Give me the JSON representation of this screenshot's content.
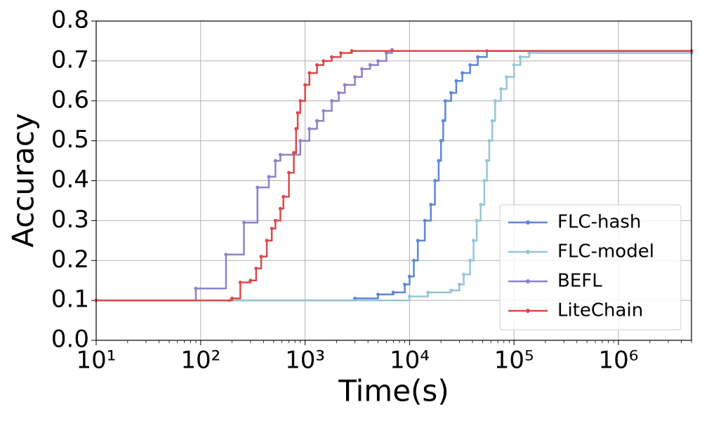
{
  "chart_data": {
    "type": "line",
    "xlabel": "Time(s)",
    "ylabel": "Accuracy",
    "xscale": "log",
    "grid": true,
    "legend": "lower right",
    "step": "post",
    "xlim": [
      10,
      5000000
    ],
    "xticks": [
      {
        "value": 10,
        "label": "10¹"
      },
      {
        "value": 100,
        "label": "10²"
      },
      {
        "value": 1000,
        "label": "10³"
      },
      {
        "value": 10000,
        "label": "10⁴"
      },
      {
        "value": 100000,
        "label": "10⁵"
      },
      {
        "value": 1000000,
        "label": "10⁶"
      }
    ],
    "ylim": [
      0,
      0.8
    ],
    "yticks": [
      {
        "value": 0,
        "label": "0.0"
      },
      {
        "value": 0.1,
        "label": "0.1"
      },
      {
        "value": 0.2,
        "label": "0.2"
      },
      {
        "value": 0.3,
        "label": "0.3"
      },
      {
        "value": 0.4,
        "label": "0.4"
      },
      {
        "value": 0.5,
        "label": "0.5"
      },
      {
        "value": 0.6,
        "label": "0.6"
      },
      {
        "value": 0.7,
        "label": "0.7"
      },
      {
        "value": 0.8,
        "label": "0.8"
      }
    ],
    "series": [
      {
        "name": "FLC-hash",
        "color": "#5b87d9",
        "x": [
          190,
          3000,
          5000,
          7000,
          9000,
          10000,
          11000,
          12000,
          14000,
          16000,
          17500,
          19000,
          20000,
          21000,
          22000,
          25000,
          28000,
          32000,
          38000,
          45000,
          55000,
          5000000
        ],
        "values": [
          0.1,
          0.105,
          0.115,
          0.12,
          0.14,
          0.16,
          0.2,
          0.25,
          0.3,
          0.34,
          0.4,
          0.45,
          0.5,
          0.55,
          0.6,
          0.62,
          0.65,
          0.67,
          0.69,
          0.71,
          0.725,
          0.725
        ]
      },
      {
        "name": "FLC-model",
        "color": "#96c6d8",
        "x": [
          190,
          10000,
          15000,
          25000,
          30000,
          33000,
          38000,
          41000,
          44000,
          48000,
          52000,
          55000,
          58000,
          62000,
          66000,
          75000,
          85000,
          100000,
          115000,
          140000,
          5000000
        ],
        "values": [
          0.1,
          0.11,
          0.12,
          0.125,
          0.14,
          0.165,
          0.2,
          0.25,
          0.3,
          0.34,
          0.4,
          0.45,
          0.5,
          0.55,
          0.6,
          0.63,
          0.66,
          0.69,
          0.71,
          0.72,
          0.72
        ]
      },
      {
        "name": "BEFL",
        "color": "#8f80cc",
        "x": [
          10,
          90,
          175,
          260,
          350,
          450,
          520,
          580,
          900,
          1100,
          1300,
          1500,
          1800,
          2100,
          2400,
          3000,
          3500,
          4200,
          5000,
          6000,
          6800
        ],
        "values": [
          0.1,
          0.13,
          0.215,
          0.295,
          0.383,
          0.41,
          0.45,
          0.465,
          0.5,
          0.53,
          0.55,
          0.575,
          0.6,
          0.62,
          0.64,
          0.66,
          0.68,
          0.69,
          0.7,
          0.72,
          0.728
        ]
      },
      {
        "name": "LiteChain",
        "color": "#d94a4a",
        "x": [
          10,
          200,
          240,
          300,
          340,
          380,
          430,
          480,
          520,
          580,
          620,
          700,
          780,
          820,
          850,
          900,
          1000,
          1100,
          1300,
          1500,
          1800,
          2200,
          2800,
          5000000
        ],
        "values": [
          0.1,
          0.105,
          0.145,
          0.15,
          0.18,
          0.21,
          0.25,
          0.28,
          0.3,
          0.33,
          0.36,
          0.42,
          0.47,
          0.53,
          0.57,
          0.6,
          0.64,
          0.67,
          0.69,
          0.7,
          0.71,
          0.72,
          0.725,
          0.725
        ]
      }
    ]
  }
}
